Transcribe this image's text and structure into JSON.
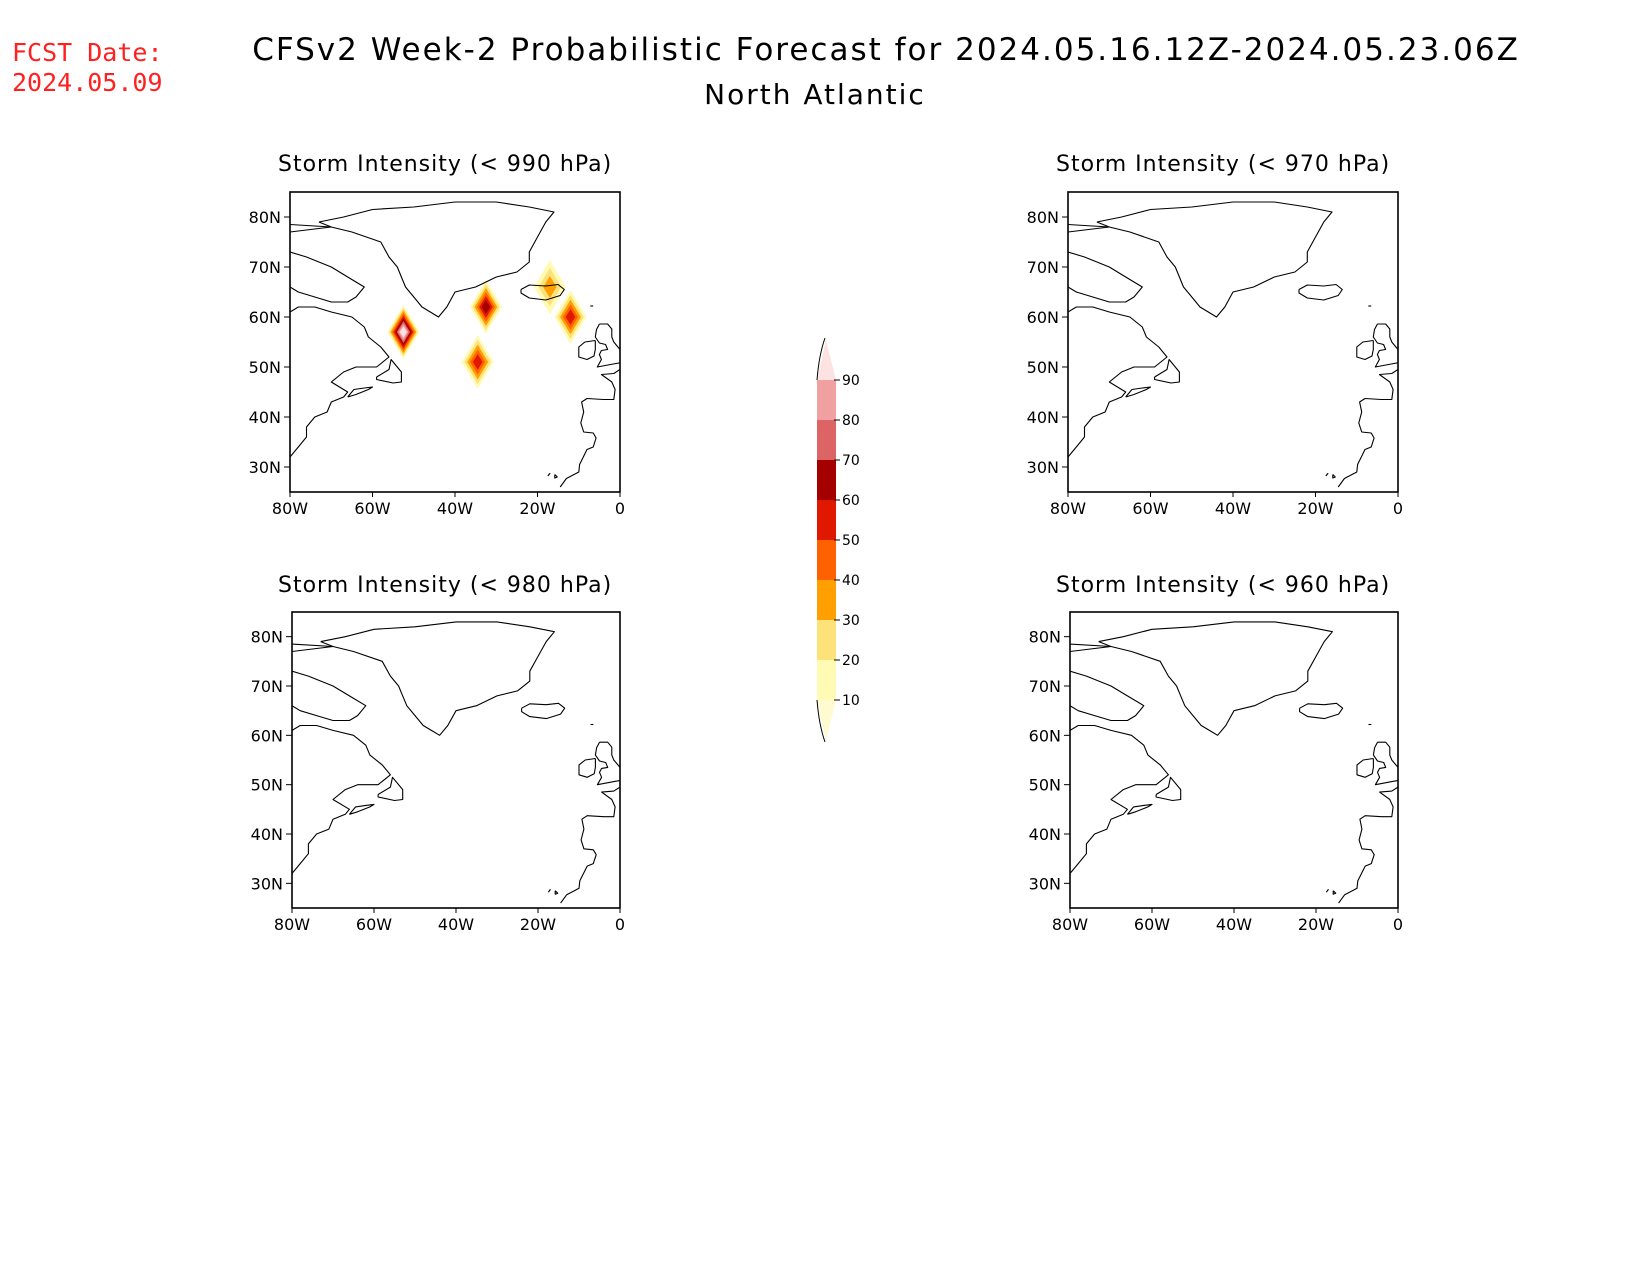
{
  "header": {
    "fcst_label": "FCST Date:",
    "fcst_date": "2024.05.09",
    "title": "CFSv2 Week-2 Probabilistic Forecast for 2024.05.16.12Z-2024.05.23.06Z",
    "subtitle": "North Atlantic"
  },
  "panels": [
    {
      "id": "p990",
      "title": "Storm Intensity (< 990 hPa)"
    },
    {
      "id": "p970",
      "title": "Storm Intensity (< 970 hPa)"
    },
    {
      "id": "p980",
      "title": "Storm Intensity (< 980 hPa)"
    },
    {
      "id": "p960",
      "title": "Storm Intensity (< 960 hPa)"
    }
  ],
  "axes": {
    "lat_labels": [
      "80N",
      "70N",
      "60N",
      "50N",
      "40N",
      "30N"
    ],
    "lon_labels": [
      "80W",
      "60W",
      "40W",
      "20W",
      "0"
    ],
    "lat_range": [
      25,
      85
    ],
    "lon_range": [
      -80,
      0
    ]
  },
  "colorbar": {
    "levels": [
      "10",
      "20",
      "30",
      "40",
      "50",
      "60",
      "70",
      "80",
      "90"
    ],
    "colors": [
      "#fffab4",
      "#fde27a",
      "#ffa000",
      "#ff6000",
      "#e11800",
      "#a50000",
      "#dc6464",
      "#f0a0a0",
      "#fde2e2"
    ]
  },
  "chart_data": {
    "type": "heatmap",
    "units": "probability (%)",
    "panels": [
      {
        "id": "p990",
        "features": [
          {
            "lon": -52.5,
            "lat": 57,
            "max_prob": 90
          },
          {
            "lon": -32.5,
            "lat": 62,
            "max_prob": 60
          },
          {
            "lon": -34.5,
            "lat": 51,
            "max_prob": 50
          },
          {
            "lon": -17,
            "lat": 66,
            "max_prob": 30
          },
          {
            "lon": -12,
            "lat": 60,
            "max_prob": 50
          }
        ]
      },
      {
        "id": "p970",
        "features": []
      },
      {
        "id": "p980",
        "features": []
      },
      {
        "id": "p960",
        "features": []
      }
    ]
  }
}
